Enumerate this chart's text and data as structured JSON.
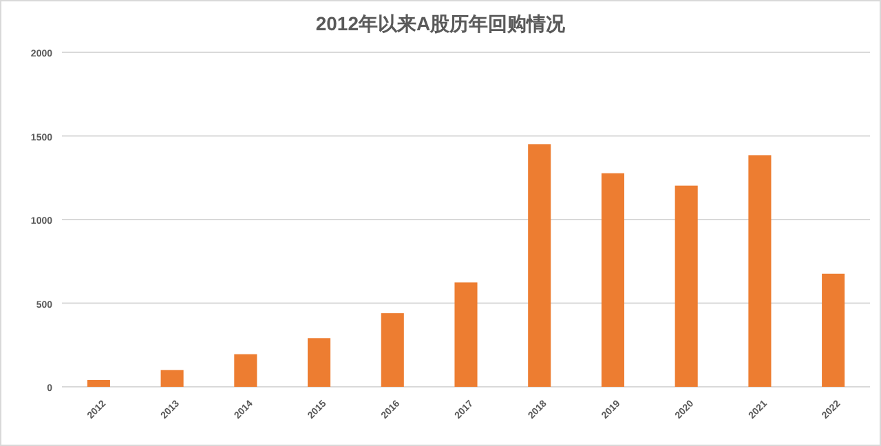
{
  "chart_data": {
    "type": "bar",
    "title": "2012年以来A股历年回购情况",
    "categories": [
      "2012",
      "2013",
      "2014",
      "2015",
      "2016",
      "2017",
      "2018",
      "2019",
      "2020",
      "2021",
      "2022"
    ],
    "values": [
      41,
      100,
      195,
      291,
      440,
      624,
      1451,
      1277,
      1203,
      1385,
      676
    ],
    "color": "#ed7d31",
    "ylim": [
      0,
      2000
    ],
    "yticks": [
      0,
      500,
      1000,
      1500,
      2000
    ],
    "grid": "y"
  }
}
